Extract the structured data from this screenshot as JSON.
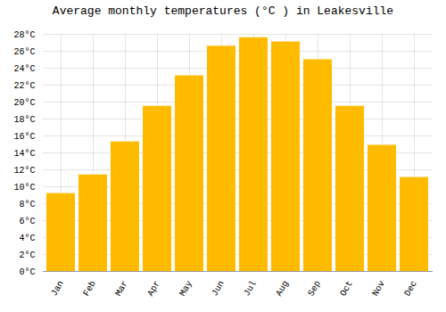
{
  "chart_data": {
    "type": "bar",
    "title": "Average monthly temperatures (°C ) in Leakesville",
    "categories": [
      "Jan",
      "Feb",
      "Mar",
      "Apr",
      "May",
      "Jun",
      "Jul",
      "Aug",
      "Sep",
      "Oct",
      "Nov",
      "Dec"
    ],
    "values": [
      9.2,
      11.4,
      15.3,
      19.5,
      23.1,
      26.6,
      27.6,
      27.1,
      25.0,
      19.5,
      14.9,
      11.1
    ],
    "color": "#FFBB00",
    "ylim": [
      0,
      28
    ],
    "yticks": [
      {
        "value": 0,
        "label": "0°C"
      },
      {
        "value": 2,
        "label": "2°C"
      },
      {
        "value": 4,
        "label": "4°C"
      },
      {
        "value": 6,
        "label": "6°C"
      },
      {
        "value": 8,
        "label": "8°C"
      },
      {
        "value": 10,
        "label": "10°C"
      },
      {
        "value": 12,
        "label": "12°C"
      },
      {
        "value": 14,
        "label": "14°C"
      },
      {
        "value": 16,
        "label": "16°C"
      },
      {
        "value": 18,
        "label": "18°C"
      },
      {
        "value": 20,
        "label": "20°C"
      },
      {
        "value": 22,
        "label": "22°C"
      },
      {
        "value": 24,
        "label": "24°C"
      },
      {
        "value": 26,
        "label": "26°C"
      },
      {
        "value": 28,
        "label": "28°C"
      }
    ],
    "grid": true
  }
}
